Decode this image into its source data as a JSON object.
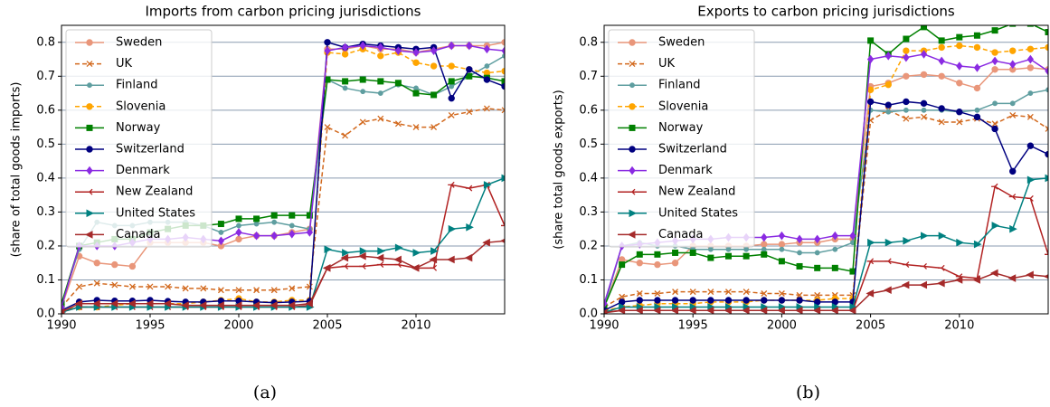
{
  "chart_data": [
    {
      "type": "line",
      "title": "Imports from carbon pricing jurisdictions",
      "y_label": "(share of total goods imports)",
      "caption": "(a)",
      "x": [
        1990,
        1991,
        1992,
        1993,
        1994,
        1995,
        1996,
        1997,
        1998,
        1999,
        2000,
        2001,
        2002,
        2003,
        2004,
        2005,
        2006,
        2007,
        2008,
        2009,
        2010,
        2011,
        2012,
        2013,
        2014,
        2015
      ],
      "xlim": [
        1990,
        2015
      ],
      "xticks": [
        1990,
        1995,
        2000,
        2005,
        2010
      ],
      "ylim": [
        0,
        0.85
      ],
      "yticks": [
        {
          "value": 0,
          "label": "0.0"
        },
        0.1,
        0.2,
        0.3,
        0.4,
        0.5,
        0.6,
        0.7,
        0.8
      ],
      "grid": true,
      "legend": "upper left",
      "series": [
        {
          "name": "Sweden",
          "color": "#e9967a",
          "marker": "o",
          "linestyle": "solid",
          "values": [
            0.02,
            0.17,
            0.15,
            0.145,
            0.14,
            0.21,
            0.21,
            0.21,
            0.21,
            0.2,
            0.22,
            0.23,
            0.23,
            0.24,
            0.25,
            0.78,
            0.78,
            0.79,
            0.78,
            0.78,
            0.77,
            0.78,
            0.79,
            0.79,
            0.79,
            0.8
          ]
        },
        {
          "name": "UK",
          "color": "#d2691e",
          "marker": "x",
          "linestyle": "dashed",
          "values": [
            0.02,
            0.08,
            0.09,
            0.085,
            0.08,
            0.08,
            0.08,
            0.075,
            0.075,
            0.07,
            0.07,
            0.07,
            0.07,
            0.075,
            0.08,
            0.55,
            0.525,
            0.565,
            0.575,
            0.56,
            0.55,
            0.55,
            0.585,
            0.595,
            0.605,
            0.6
          ]
        },
        {
          "name": "Finland",
          "color": "#5f9ea0",
          "marker": "p",
          "linestyle": "solid",
          "values": [
            0.03,
            0.19,
            0.27,
            0.26,
            0.26,
            0.27,
            0.27,
            0.27,
            0.26,
            0.24,
            0.26,
            0.265,
            0.27,
            0.26,
            0.25,
            0.69,
            0.665,
            0.655,
            0.65,
            0.675,
            0.665,
            0.645,
            0.67,
            0.7,
            0.73,
            0.76
          ]
        },
        {
          "name": "Slovenia",
          "color": "#ffa500",
          "marker": "o",
          "linestyle": "dashed",
          "values": [
            0.01,
            0.02,
            0.02,
            0.025,
            0.03,
            0.03,
            0.03,
            0.03,
            0.035,
            0.04,
            0.045,
            0.035,
            0.035,
            0.04,
            0.04,
            0.77,
            0.765,
            0.78,
            0.76,
            0.77,
            0.74,
            0.73,
            0.73,
            0.72,
            0.71,
            0.715
          ]
        },
        {
          "name": "Norway",
          "color": "#008000",
          "marker": "s",
          "linestyle": "solid",
          "values": [
            0.03,
            0.2,
            0.21,
            0.22,
            0.22,
            0.24,
            0.25,
            0.26,
            0.26,
            0.265,
            0.28,
            0.28,
            0.29,
            0.29,
            0.29,
            0.69,
            0.685,
            0.69,
            0.685,
            0.68,
            0.65,
            0.645,
            0.685,
            0.7,
            0.695,
            0.685
          ]
        },
        {
          "name": "Switzerland",
          "color": "#000080",
          "marker": "o",
          "linestyle": "solid",
          "values": [
            0.01,
            0.035,
            0.04,
            0.038,
            0.038,
            0.04,
            0.037,
            0.035,
            0.035,
            0.038,
            0.038,
            0.035,
            0.033,
            0.035,
            0.037,
            0.8,
            0.785,
            0.795,
            0.79,
            0.785,
            0.78,
            0.785,
            0.635,
            0.72,
            0.69,
            0.67
          ]
        },
        {
          "name": "Denmark",
          "color": "#8a2be2",
          "marker": "D",
          "linestyle": "solid",
          "values": [
            0.02,
            0.2,
            0.2,
            0.2,
            0.21,
            0.22,
            0.22,
            0.225,
            0.22,
            0.215,
            0.24,
            0.23,
            0.23,
            0.235,
            0.24,
            0.775,
            0.785,
            0.79,
            0.785,
            0.775,
            0.77,
            0.775,
            0.79,
            0.79,
            0.78,
            0.775
          ]
        },
        {
          "name": "New Zealand",
          "color": "#b22222",
          "marker": "+",
          "linestyle": "solid",
          "values": [
            0.005,
            0.02,
            0.02,
            0.02,
            0.02,
            0.02,
            0.02,
            0.02,
            0.02,
            0.02,
            0.02,
            0.02,
            0.02,
            0.02,
            0.025,
            0.135,
            0.14,
            0.14,
            0.145,
            0.145,
            0.135,
            0.135,
            0.38,
            0.37,
            0.38,
            0.26
          ]
        },
        {
          "name": "United States",
          "color": "#008080",
          "marker": ">",
          "linestyle": "solid",
          "values": [
            0.005,
            0.02,
            0.02,
            0.02,
            0.02,
            0.02,
            0.02,
            0.02,
            0.02,
            0.02,
            0.02,
            0.02,
            0.02,
            0.02,
            0.02,
            0.19,
            0.18,
            0.185,
            0.185,
            0.195,
            0.18,
            0.185,
            0.25,
            0.255,
            0.38,
            0.4
          ]
        },
        {
          "name": "Canada",
          "color": "#a52a2a",
          "marker": "<",
          "linestyle": "solid",
          "values": [
            0.005,
            0.03,
            0.03,
            0.03,
            0.03,
            0.03,
            0.03,
            0.025,
            0.025,
            0.025,
            0.025,
            0.025,
            0.025,
            0.025,
            0.03,
            0.135,
            0.165,
            0.17,
            0.165,
            0.16,
            0.135,
            0.16,
            0.16,
            0.165,
            0.21,
            0.215
          ]
        }
      ]
    },
    {
      "type": "line",
      "title": "Exports to carbon pricing jurisdictions",
      "y_label": "(share total goods exports)",
      "caption": "(b)",
      "x": [
        1990,
        1991,
        1992,
        1993,
        1994,
        1995,
        1996,
        1997,
        1998,
        1999,
        2000,
        2001,
        2002,
        2003,
        2004,
        2005,
        2006,
        2007,
        2008,
        2009,
        2010,
        2011,
        2012,
        2013,
        2014,
        2015
      ],
      "xlim": [
        1990,
        2015
      ],
      "xticks": [
        1990,
        1995,
        2000,
        2005,
        2010
      ],
      "ylim": [
        0,
        0.85
      ],
      "yticks": [
        {
          "value": 0,
          "label": "0.0"
        },
        0.1,
        0.2,
        0.3,
        0.4,
        0.5,
        0.6,
        0.7,
        0.8
      ],
      "grid": true,
      "legend": "upper left",
      "series": [
        {
          "name": "Sweden",
          "color": "#e9967a",
          "marker": "o",
          "linestyle": "solid",
          "values": [
            0.02,
            0.16,
            0.15,
            0.145,
            0.15,
            0.2,
            0.2,
            0.2,
            0.2,
            0.205,
            0.205,
            0.21,
            0.21,
            0.22,
            0.22,
            0.67,
            0.68,
            0.7,
            0.705,
            0.7,
            0.68,
            0.665,
            0.72,
            0.72,
            0.725,
            0.72
          ]
        },
        {
          "name": "UK",
          "color": "#d2691e",
          "marker": "x",
          "linestyle": "dashed",
          "values": [
            0.02,
            0.05,
            0.06,
            0.06,
            0.065,
            0.065,
            0.065,
            0.065,
            0.065,
            0.06,
            0.06,
            0.055,
            0.055,
            0.055,
            0.055,
            0.57,
            0.6,
            0.575,
            0.58,
            0.565,
            0.565,
            0.575,
            0.56,
            0.585,
            0.58,
            0.545
          ]
        },
        {
          "name": "Finland",
          "color": "#5f9ea0",
          "marker": "p",
          "linestyle": "solid",
          "values": [
            0.02,
            0.2,
            0.21,
            0.2,
            0.2,
            0.19,
            0.19,
            0.19,
            0.19,
            0.19,
            0.19,
            0.18,
            0.18,
            0.19,
            0.21,
            0.6,
            0.595,
            0.6,
            0.6,
            0.6,
            0.595,
            0.6,
            0.62,
            0.62,
            0.65,
            0.66
          ]
        },
        {
          "name": "Slovenia",
          "color": "#ffa500",
          "marker": "o",
          "linestyle": "dashed",
          "values": [
            0.01,
            0.02,
            0.025,
            0.03,
            0.03,
            0.03,
            0.035,
            0.035,
            0.035,
            0.04,
            0.04,
            0.04,
            0.04,
            0.045,
            0.045,
            0.66,
            0.675,
            0.775,
            0.775,
            0.785,
            0.79,
            0.785,
            0.77,
            0.775,
            0.78,
            0.785
          ]
        },
        {
          "name": "Norway",
          "color": "#008000",
          "marker": "s",
          "linestyle": "solid",
          "values": [
            0.02,
            0.145,
            0.175,
            0.175,
            0.18,
            0.18,
            0.165,
            0.17,
            0.17,
            0.175,
            0.155,
            0.14,
            0.135,
            0.135,
            0.125,
            0.805,
            0.765,
            0.81,
            0.845,
            0.805,
            0.815,
            0.82,
            0.835,
            0.855,
            0.855,
            0.83
          ]
        },
        {
          "name": "Switzerland",
          "color": "#000080",
          "marker": "o",
          "linestyle": "solid",
          "values": [
            0.01,
            0.035,
            0.04,
            0.04,
            0.04,
            0.04,
            0.04,
            0.04,
            0.04,
            0.04,
            0.04,
            0.04,
            0.035,
            0.035,
            0.035,
            0.625,
            0.615,
            0.625,
            0.62,
            0.605,
            0.595,
            0.58,
            0.545,
            0.42,
            0.495,
            0.47
          ]
        },
        {
          "name": "Denmark",
          "color": "#8a2be2",
          "marker": "D",
          "linestyle": "solid",
          "values": [
            0.03,
            0.2,
            0.205,
            0.21,
            0.215,
            0.22,
            0.22,
            0.225,
            0.225,
            0.225,
            0.23,
            0.22,
            0.22,
            0.23,
            0.23,
            0.75,
            0.76,
            0.755,
            0.765,
            0.745,
            0.73,
            0.725,
            0.745,
            0.735,
            0.75,
            0.715
          ]
        },
        {
          "name": "New Zealand",
          "color": "#b22222",
          "marker": "+",
          "linestyle": "solid",
          "values": [
            0.005,
            0.01,
            0.01,
            0.01,
            0.01,
            0.01,
            0.01,
            0.01,
            0.01,
            0.01,
            0.01,
            0.01,
            0.01,
            0.01,
            0.01,
            0.155,
            0.155,
            0.145,
            0.14,
            0.135,
            0.11,
            0.105,
            0.375,
            0.345,
            0.34,
            0.175
          ]
        },
        {
          "name": "United States",
          "color": "#008080",
          "marker": ">",
          "linestyle": "solid",
          "values": [
            0.005,
            0.02,
            0.02,
            0.02,
            0.02,
            0.02,
            0.02,
            0.02,
            0.02,
            0.02,
            0.02,
            0.02,
            0.02,
            0.02,
            0.02,
            0.21,
            0.21,
            0.215,
            0.23,
            0.23,
            0.21,
            0.205,
            0.26,
            0.25,
            0.395,
            0.4
          ]
        },
        {
          "name": "Canada",
          "color": "#a52a2a",
          "marker": "<",
          "linestyle": "solid",
          "values": [
            0.003,
            0.01,
            0.01,
            0.01,
            0.01,
            0.01,
            0.01,
            0.01,
            0.01,
            0.01,
            0.01,
            0.01,
            0.01,
            0.01,
            0.01,
            0.06,
            0.07,
            0.085,
            0.085,
            0.09,
            0.1,
            0.1,
            0.12,
            0.105,
            0.115,
            0.11
          ]
        }
      ]
    }
  ]
}
